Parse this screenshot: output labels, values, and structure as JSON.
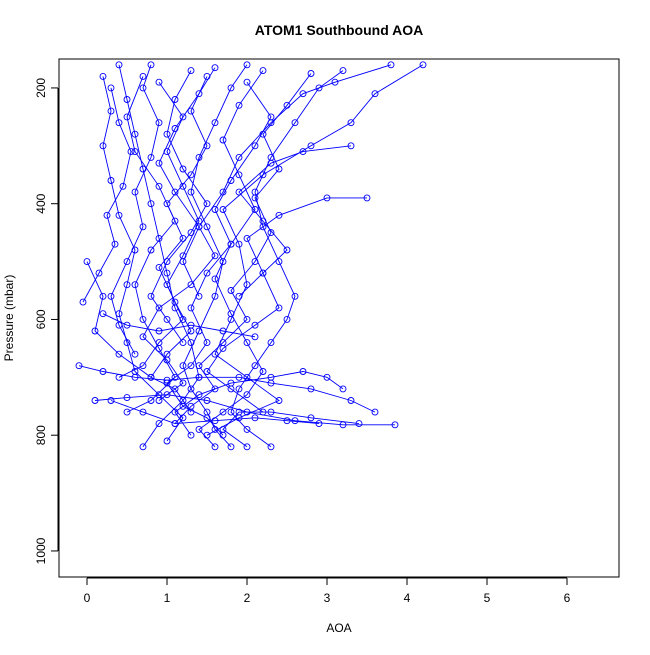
{
  "chart_data": {
    "type": "line",
    "title": "ATOM1 Southbound AOA",
    "xlabel": "AOA",
    "ylabel": "Pressure (mbar)",
    "xlim": [
      -0.35,
      6.65
    ],
    "ylim": [
      1045,
      150
    ],
    "y_axis_inverted": true,
    "x_ticks": [
      0,
      1,
      2,
      3,
      4,
      5,
      6
    ],
    "y_ticks": [
      200,
      400,
      600,
      800,
      1000
    ],
    "grid": false,
    "legend": "none",
    "line_color": "#0000ff",
    "marker": "open-circle",
    "series": [
      {
        "values": [
          {
            "x": 0.7,
            "y": 820
          },
          {
            "x": 0.9,
            "y": 780
          },
          {
            "x": 1.2,
            "y": 740
          },
          {
            "x": 1.4,
            "y": 700
          },
          {
            "x": 1.3,
            "y": 640
          },
          {
            "x": 1.1,
            "y": 580
          },
          {
            "x": 1.0,
            "y": 520
          },
          {
            "x": 0.9,
            "y": 460
          },
          {
            "x": 0.8,
            "y": 400
          },
          {
            "x": 0.7,
            "y": 340
          },
          {
            "x": 0.6,
            "y": 280
          },
          {
            "x": 0.5,
            "y": 220
          },
          {
            "x": 0.4,
            "y": 160
          }
        ]
      },
      {
        "values": [
          {
            "x": 1.8,
            "y": 820
          },
          {
            "x": 1.6,
            "y": 790
          },
          {
            "x": 1.5,
            "y": 760
          },
          {
            "x": 1.3,
            "y": 720
          },
          {
            "x": 1.2,
            "y": 680
          },
          {
            "x": 1.4,
            "y": 620
          },
          {
            "x": 1.6,
            "y": 560
          },
          {
            "x": 1.7,
            "y": 500
          },
          {
            "x": 1.5,
            "y": 440
          },
          {
            "x": 1.3,
            "y": 380
          },
          {
            "x": 1.4,
            "y": 320
          },
          {
            "x": 1.6,
            "y": 260
          },
          {
            "x": 1.8,
            "y": 200
          },
          {
            "x": 2.0,
            "y": 160
          }
        ]
      },
      {
        "values": [
          {
            "x": 0.1,
            "y": 740
          },
          {
            "x": 0.5,
            "y": 735
          },
          {
            "x": 1.0,
            "y": 730
          },
          {
            "x": 1.5,
            "y": 740
          },
          {
            "x": 2.0,
            "y": 760
          },
          {
            "x": 2.6,
            "y": 775
          },
          {
            "x": 3.2,
            "y": 782
          },
          {
            "x": 3.85,
            "y": 782
          }
        ]
      },
      {
        "values": [
          {
            "x": -0.1,
            "y": 680
          },
          {
            "x": 0.2,
            "y": 690
          },
          {
            "x": 0.6,
            "y": 700
          },
          {
            "x": 1.0,
            "y": 705
          },
          {
            "x": 1.4,
            "y": 700
          },
          {
            "x": 1.9,
            "y": 700
          },
          {
            "x": 2.3,
            "y": 710
          },
          {
            "x": 2.8,
            "y": 720
          },
          {
            "x": 3.3,
            "y": 740
          },
          {
            "x": 3.6,
            "y": 760
          }
        ]
      },
      {
        "values": [
          {
            "x": 2.3,
            "y": 820
          },
          {
            "x": 2.0,
            "y": 790
          },
          {
            "x": 1.8,
            "y": 760
          },
          {
            "x": 1.9,
            "y": 720
          },
          {
            "x": 2.1,
            "y": 680
          },
          {
            "x": 2.3,
            "y": 640
          },
          {
            "x": 2.5,
            "y": 600
          },
          {
            "x": 2.6,
            "y": 560
          },
          {
            "x": 2.4,
            "y": 500
          },
          {
            "x": 2.2,
            "y": 440
          },
          {
            "x": 2.1,
            "y": 380
          },
          {
            "x": 2.3,
            "y": 320
          },
          {
            "x": 2.6,
            "y": 260
          },
          {
            "x": 2.9,
            "y": 200
          },
          {
            "x": 3.2,
            "y": 170
          }
        ]
      },
      {
        "values": [
          {
            "x": 1.0,
            "y": 810
          },
          {
            "x": 1.2,
            "y": 770
          },
          {
            "x": 0.9,
            "y": 730
          },
          {
            "x": 0.6,
            "y": 690
          },
          {
            "x": 0.5,
            "y": 640
          },
          {
            "x": 0.4,
            "y": 590
          },
          {
            "x": 0.5,
            "y": 540
          },
          {
            "x": 0.6,
            "y": 480
          },
          {
            "x": 0.4,
            "y": 420
          },
          {
            "x": 0.3,
            "y": 360
          },
          {
            "x": 0.2,
            "y": 300
          },
          {
            "x": 0.3,
            "y": 240
          },
          {
            "x": 0.2,
            "y": 180
          }
        ]
      },
      {
        "values": [
          {
            "x": 1.5,
            "y": 800
          },
          {
            "x": 1.9,
            "y": 770
          },
          {
            "x": 2.4,
            "y": 740
          },
          {
            "x": 2.0,
            "y": 700
          },
          {
            "x": 1.6,
            "y": 660
          },
          {
            "x": 1.8,
            "y": 600
          },
          {
            "x": 2.0,
            "y": 540
          },
          {
            "x": 1.9,
            "y": 470
          },
          {
            "x": 1.7,
            "y": 410
          },
          {
            "x": 2.2,
            "y": 350
          },
          {
            "x": 2.8,
            "y": 300
          },
          {
            "x": 3.3,
            "y": 260
          },
          {
            "x": 3.6,
            "y": 210
          },
          {
            "x": 4.2,
            "y": 160
          }
        ]
      },
      {
        "values": [
          {
            "x": 0.3,
            "y": 740
          },
          {
            "x": 0.7,
            "y": 760
          },
          {
            "x": 1.1,
            "y": 780
          },
          {
            "x": 1.6,
            "y": 775
          },
          {
            "x": 2.1,
            "y": 770
          },
          {
            "x": 2.5,
            "y": 775
          },
          {
            "x": 2.9,
            "y": 780
          }
        ]
      },
      {
        "values": [
          {
            "x": 0.0,
            "y": 500
          },
          {
            "x": 0.2,
            "y": 560
          },
          {
            "x": 0.1,
            "y": 620
          },
          {
            "x": 0.4,
            "y": 660
          },
          {
            "x": 0.8,
            "y": 700
          },
          {
            "x": 1.1,
            "y": 720
          },
          {
            "x": 1.3,
            "y": 760
          }
        ]
      },
      {
        "values": [
          {
            "x": 1.2,
            "y": 640
          },
          {
            "x": 1.0,
            "y": 600
          },
          {
            "x": 0.8,
            "y": 560
          },
          {
            "x": 1.0,
            "y": 500
          },
          {
            "x": 1.3,
            "y": 450
          },
          {
            "x": 1.5,
            "y": 400
          },
          {
            "x": 1.2,
            "y": 340
          },
          {
            "x": 1.0,
            "y": 280
          },
          {
            "x": 1.1,
            "y": 220
          },
          {
            "x": 1.3,
            "y": 170
          }
        ]
      },
      {
        "values": [
          {
            "x": 2.2,
            "y": 760
          },
          {
            "x": 1.8,
            "y": 720
          },
          {
            "x": 1.5,
            "y": 690
          },
          {
            "x": 1.7,
            "y": 650
          },
          {
            "x": 2.1,
            "y": 610
          },
          {
            "x": 2.4,
            "y": 580
          },
          {
            "x": 2.2,
            "y": 520
          },
          {
            "x": 2.0,
            "y": 460
          },
          {
            "x": 2.4,
            "y": 420
          },
          {
            "x": 3.0,
            "y": 390
          },
          {
            "x": 3.5,
            "y": 390
          }
        ]
      },
      {
        "values": [
          {
            "x": 0.9,
            "y": 740
          },
          {
            "x": 1.2,
            "y": 710
          },
          {
            "x": 1.0,
            "y": 670
          },
          {
            "x": 0.7,
            "y": 630
          },
          {
            "x": 0.9,
            "y": 580
          },
          {
            "x": 1.3,
            "y": 540
          },
          {
            "x": 1.6,
            "y": 490
          },
          {
            "x": 1.4,
            "y": 440
          },
          {
            "x": 1.1,
            "y": 380
          },
          {
            "x": 0.9,
            "y": 330
          },
          {
            "x": 1.1,
            "y": 270
          },
          {
            "x": 1.4,
            "y": 210
          },
          {
            "x": 1.6,
            "y": 165
          }
        ]
      },
      {
        "values": [
          {
            "x": 1.6,
            "y": 820
          },
          {
            "x": 1.4,
            "y": 790
          },
          {
            "x": 1.7,
            "y": 760
          },
          {
            "x": 2.0,
            "y": 730
          },
          {
            "x": 2.2,
            "y": 690
          },
          {
            "x": 2.0,
            "y": 640
          },
          {
            "x": 1.8,
            "y": 590
          },
          {
            "x": 1.6,
            "y": 530
          },
          {
            "x": 1.8,
            "y": 470
          },
          {
            "x": 2.1,
            "y": 410
          },
          {
            "x": 1.9,
            "y": 350
          },
          {
            "x": 1.7,
            "y": 290
          },
          {
            "x": 1.9,
            "y": 230
          },
          {
            "x": 2.2,
            "y": 170
          }
        ]
      },
      {
        "values": [
          {
            "x": 0.6,
            "y": 660
          },
          {
            "x": 0.4,
            "y": 610
          },
          {
            "x": 0.3,
            "y": 560
          },
          {
            "x": 0.5,
            "y": 500
          },
          {
            "x": 0.7,
            "y": 440
          },
          {
            "x": 0.6,
            "y": 380
          },
          {
            "x": 0.8,
            "y": 320
          },
          {
            "x": 0.9,
            "y": 260
          },
          {
            "x": 0.7,
            "y": 200
          },
          {
            "x": 0.8,
            "y": 160
          }
        ]
      },
      {
        "values": [
          {
            "x": 1.3,
            "y": 800
          },
          {
            "x": 1.1,
            "y": 760
          },
          {
            "x": 1.4,
            "y": 730
          },
          {
            "x": 1.8,
            "y": 710
          },
          {
            "x": 2.3,
            "y": 700
          },
          {
            "x": 2.7,
            "y": 690
          },
          {
            "x": 3.0,
            "y": 700
          },
          {
            "x": 3.2,
            "y": 720
          }
        ]
      },
      {
        "values": [
          {
            "x": 0.2,
            "y": 590
          },
          {
            "x": 0.5,
            "y": 610
          },
          {
            "x": 0.9,
            "y": 620
          },
          {
            "x": 1.3,
            "y": 610
          },
          {
            "x": 1.7,
            "y": 620
          },
          {
            "x": 2.1,
            "y": 630
          }
        ]
      },
      {
        "values": [
          {
            "x": 1.9,
            "y": 560
          },
          {
            "x": 2.2,
            "y": 520
          },
          {
            "x": 2.5,
            "y": 480
          },
          {
            "x": 2.2,
            "y": 430
          },
          {
            "x": 1.9,
            "y": 380
          },
          {
            "x": 2.3,
            "y": 330
          },
          {
            "x": 2.7,
            "y": 310
          },
          {
            "x": 3.3,
            "y": 300
          }
        ]
      },
      {
        "values": [
          {
            "x": 0.8,
            "y": 700
          },
          {
            "x": 1.0,
            "y": 660
          },
          {
            "x": 1.3,
            "y": 620
          },
          {
            "x": 1.1,
            "y": 570
          },
          {
            "x": 0.9,
            "y": 510
          },
          {
            "x": 1.2,
            "y": 460
          },
          {
            "x": 1.0,
            "y": 400
          },
          {
            "x": 1.3,
            "y": 350
          },
          {
            "x": 1.5,
            "y": 300
          },
          {
            "x": 1.3,
            "y": 240
          },
          {
            "x": 1.5,
            "y": 180
          }
        ]
      },
      {
        "values": [
          {
            "x": 1.7,
            "y": 800
          },
          {
            "x": 1.5,
            "y": 770
          },
          {
            "x": 1.2,
            "y": 750
          },
          {
            "x": 1.0,
            "y": 710
          },
          {
            "x": 1.3,
            "y": 680
          },
          {
            "x": 1.5,
            "y": 640
          },
          {
            "x": 1.3,
            "y": 580
          },
          {
            "x": 1.5,
            "y": 520
          },
          {
            "x": 1.8,
            "y": 470
          },
          {
            "x": 1.6,
            "y": 410
          },
          {
            "x": 1.8,
            "y": 360
          },
          {
            "x": 2.1,
            "y": 300
          },
          {
            "x": 2.3,
            "y": 250
          },
          {
            "x": 2.0,
            "y": 190
          }
        ]
      },
      {
        "values": [
          {
            "x": 0.5,
            "y": 760
          },
          {
            "x": 0.8,
            "y": 740
          },
          {
            "x": 1.1,
            "y": 700
          },
          {
            "x": 0.9,
            "y": 650
          },
          {
            "x": 0.7,
            "y": 600
          },
          {
            "x": 0.6,
            "y": 540
          },
          {
            "x": 0.8,
            "y": 480
          },
          {
            "x": 1.1,
            "y": 430
          },
          {
            "x": 0.9,
            "y": 370
          },
          {
            "x": 0.6,
            "y": 310
          },
          {
            "x": 0.5,
            "y": 250
          },
          {
            "x": 0.7,
            "y": 180
          }
        ]
      },
      {
        "values": [
          {
            "x": 2.0,
            "y": 820
          },
          {
            "x": 1.7,
            "y": 790
          },
          {
            "x": 1.9,
            "y": 760
          },
          {
            "x": 2.3,
            "y": 760
          },
          {
            "x": 2.8,
            "y": 770
          },
          {
            "x": 3.4,
            "y": 780
          }
        ]
      },
      {
        "values": [
          {
            "x": 1.4,
            "y": 560
          },
          {
            "x": 1.2,
            "y": 500
          },
          {
            "x": 1.4,
            "y": 440
          },
          {
            "x": 1.7,
            "y": 380
          },
          {
            "x": 1.9,
            "y": 320
          },
          {
            "x": 2.3,
            "y": 260
          },
          {
            "x": 2.7,
            "y": 210
          },
          {
            "x": 3.1,
            "y": 190
          },
          {
            "x": 3.8,
            "y": 160
          }
        ]
      },
      {
        "values": [
          {
            "x": -0.05,
            "y": 570
          },
          {
            "x": 0.15,
            "y": 520
          },
          {
            "x": 0.35,
            "y": 470
          },
          {
            "x": 0.25,
            "y": 420
          },
          {
            "x": 0.45,
            "y": 370
          },
          {
            "x": 0.55,
            "y": 310
          },
          {
            "x": 0.4,
            "y": 260
          },
          {
            "x": 0.3,
            "y": 200
          }
        ]
      },
      {
        "values": [
          {
            "x": 1.1,
            "y": 780
          },
          {
            "x": 1.3,
            "y": 750
          },
          {
            "x": 1.6,
            "y": 720
          },
          {
            "x": 1.4,
            "y": 680
          },
          {
            "x": 1.7,
            "y": 640
          },
          {
            "x": 2.0,
            "y": 600
          },
          {
            "x": 1.8,
            "y": 550
          },
          {
            "x": 2.1,
            "y": 500
          },
          {
            "x": 2.3,
            "y": 450
          },
          {
            "x": 2.1,
            "y": 390
          },
          {
            "x": 2.4,
            "y": 340
          },
          {
            "x": 2.2,
            "y": 280
          },
          {
            "x": 2.5,
            "y": 230
          },
          {
            "x": 2.8,
            "y": 175
          }
        ]
      },
      {
        "values": [
          {
            "x": 0.4,
            "y": 700
          },
          {
            "x": 0.7,
            "y": 680
          },
          {
            "x": 0.9,
            "y": 640
          },
          {
            "x": 1.2,
            "y": 600
          },
          {
            "x": 1.0,
            "y": 540
          },
          {
            "x": 1.2,
            "y": 490
          },
          {
            "x": 1.4,
            "y": 430
          },
          {
            "x": 1.2,
            "y": 370
          },
          {
            "x": 1.0,
            "y": 310
          },
          {
            "x": 1.2,
            "y": 250
          },
          {
            "x": 0.9,
            "y": 190
          }
        ]
      }
    ]
  }
}
